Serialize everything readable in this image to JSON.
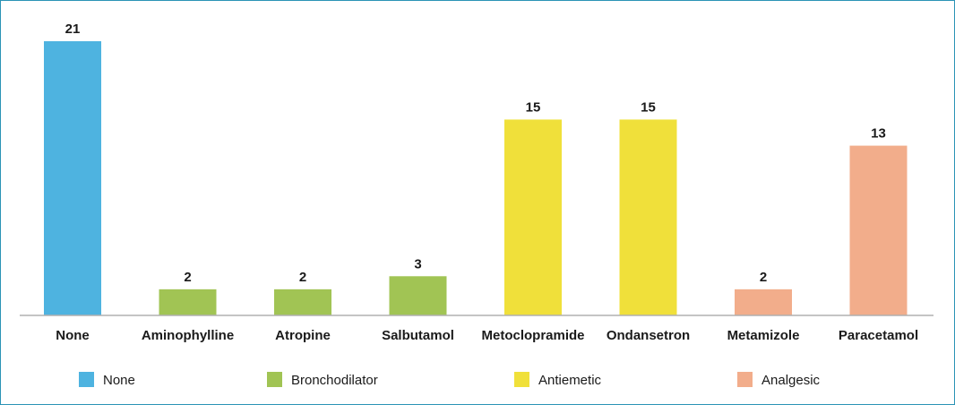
{
  "chart_data": {
    "type": "bar",
    "categories": [
      "None",
      "Aminophylline",
      "Atropine",
      "Salbutamol",
      "Metoclopramide",
      "Ondansetron",
      "Metamizole",
      "Paracetamol"
    ],
    "values": [
      21,
      2,
      2,
      3,
      15,
      15,
      2,
      13
    ],
    "groups": [
      "None",
      "Bronchodilator",
      "Bronchodilator",
      "Bronchodilator",
      "Antiemetic",
      "Antiemetic",
      "Analgesic",
      "Analgesic"
    ],
    "legend": [
      {
        "name": "None",
        "color": "#4eb3e0"
      },
      {
        "name": "Bronchodilator",
        "color": "#a1c454"
      },
      {
        "name": "Antiemetic",
        "color": "#f0e03a"
      },
      {
        "name": "Analgesic",
        "color": "#f2ad8b"
      }
    ],
    "title": "",
    "xlabel": "",
    "ylabel": "",
    "ylim": [
      0,
      21
    ],
    "grid": false,
    "legend_position": "bottom"
  }
}
